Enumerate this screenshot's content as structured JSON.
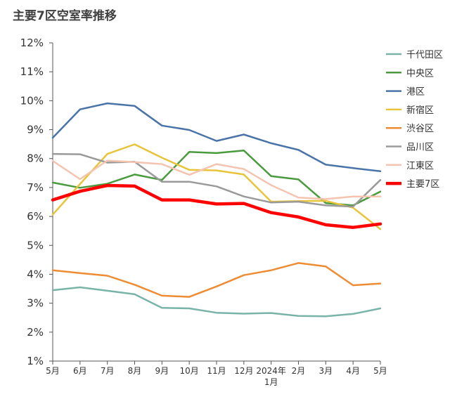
{
  "chart_data": {
    "type": "line",
    "title": "主要7区空室率推移",
    "xlabel": "",
    "ylabel": "",
    "categories": [
      "5月",
      "6月",
      "7月",
      "8月",
      "9月",
      "10月",
      "11月",
      "12月",
      "2024年1月",
      "2月",
      "3月",
      "4月",
      "5月"
    ],
    "y_ticks": [
      "1%",
      "2%",
      "3%",
      "4%",
      "5%",
      "6%",
      "7%",
      "8%",
      "9%",
      "10%",
      "11%",
      "12%"
    ],
    "ylim": [
      1,
      12
    ],
    "grid": false,
    "legend_position": "right",
    "series": [
      {
        "name": "千代田区",
        "color": "#79b4a8",
        "width": 2.5,
        "values": [
          3.45,
          3.55,
          3.43,
          3.31,
          2.84,
          2.82,
          2.67,
          2.64,
          2.66,
          2.56,
          2.55,
          2.63,
          2.82
        ]
      },
      {
        "name": "中央区",
        "color": "#4a9a3e",
        "width": 2.5,
        "values": [
          7.17,
          6.99,
          7.13,
          7.45,
          7.26,
          8.23,
          8.19,
          8.28,
          7.39,
          7.28,
          6.46,
          6.38,
          6.86
        ]
      },
      {
        "name": "港区",
        "color": "#4a74a8",
        "width": 2.5,
        "values": [
          8.72,
          9.7,
          9.91,
          9.82,
          9.14,
          8.99,
          8.61,
          8.83,
          8.53,
          8.3,
          7.79,
          7.67,
          7.56
        ]
      },
      {
        "name": "新宿区",
        "color": "#e8c43a",
        "width": 2.5,
        "values": [
          6.06,
          7.12,
          8.16,
          8.49,
          8.03,
          7.61,
          7.59,
          7.45,
          6.51,
          6.53,
          6.54,
          6.3,
          5.56
        ]
      },
      {
        "name": "渋谷区",
        "color": "#ee8c34",
        "width": 2.5,
        "values": [
          4.14,
          4.04,
          3.95,
          3.64,
          3.26,
          3.22,
          3.58,
          3.97,
          4.14,
          4.39,
          4.27,
          3.62,
          3.68
        ]
      },
      {
        "name": "品川区",
        "color": "#9a9a9a",
        "width": 2.5,
        "values": [
          8.16,
          8.15,
          7.86,
          7.89,
          7.2,
          7.2,
          7.04,
          6.69,
          6.48,
          6.51,
          6.38,
          6.34,
          7.26
        ]
      },
      {
        "name": "江東区",
        "color": "#f4c4b0",
        "width": 2.5,
        "values": [
          7.92,
          7.29,
          7.93,
          7.88,
          7.81,
          7.44,
          7.81,
          7.64,
          7.08,
          6.65,
          6.6,
          6.69,
          6.69
        ]
      },
      {
        "name": "主要7区",
        "color": "#ff0000",
        "width": 4.5,
        "values": [
          6.57,
          6.87,
          7.07,
          7.05,
          6.57,
          6.57,
          6.43,
          6.45,
          6.13,
          5.98,
          5.71,
          5.62,
          5.74
        ]
      }
    ]
  }
}
